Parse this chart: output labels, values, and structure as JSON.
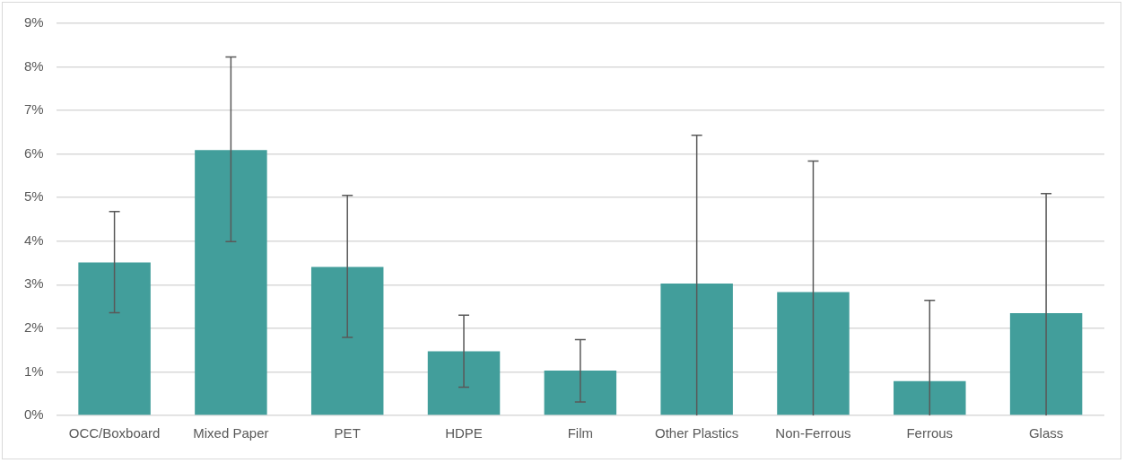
{
  "chart_data": {
    "type": "bar",
    "categories": [
      "OCC/Boxboard",
      "Mixed Paper",
      "PET",
      "HDPE",
      "Film",
      "Other Plastics",
      "Non-Ferrous",
      "Ferrous",
      "Glass"
    ],
    "values": [
      3.51,
      6.09,
      3.41,
      1.47,
      1.03,
      3.03,
      2.83,
      0.79,
      2.35
    ],
    "errors": [
      [
        2.36,
        4.68
      ],
      [
        3.99,
        8.23
      ],
      [
        1.79,
        5.05
      ],
      [
        0.65,
        2.3
      ],
      [
        0.31,
        1.74
      ],
      [
        0,
        6.43
      ],
      [
        0,
        5.84
      ],
      [
        0,
        2.64
      ],
      [
        0,
        5.09
      ]
    ],
    "color": "#429e9b",
    "ylim": [
      0,
      9
    ],
    "yticks": [
      {
        "value": 0,
        "label": "0%"
      },
      {
        "value": 1,
        "label": "1%"
      },
      {
        "value": 2,
        "label": "2%"
      },
      {
        "value": 3,
        "label": "3%"
      },
      {
        "value": 4,
        "label": "4%"
      },
      {
        "value": 5,
        "label": "5%"
      },
      {
        "value": 6,
        "label": "6%"
      },
      {
        "value": 7,
        "label": "7%"
      },
      {
        "value": 8,
        "label": "8%"
      },
      {
        "value": 9,
        "label": "9%"
      }
    ],
    "grid": "y",
    "legend": false
  }
}
